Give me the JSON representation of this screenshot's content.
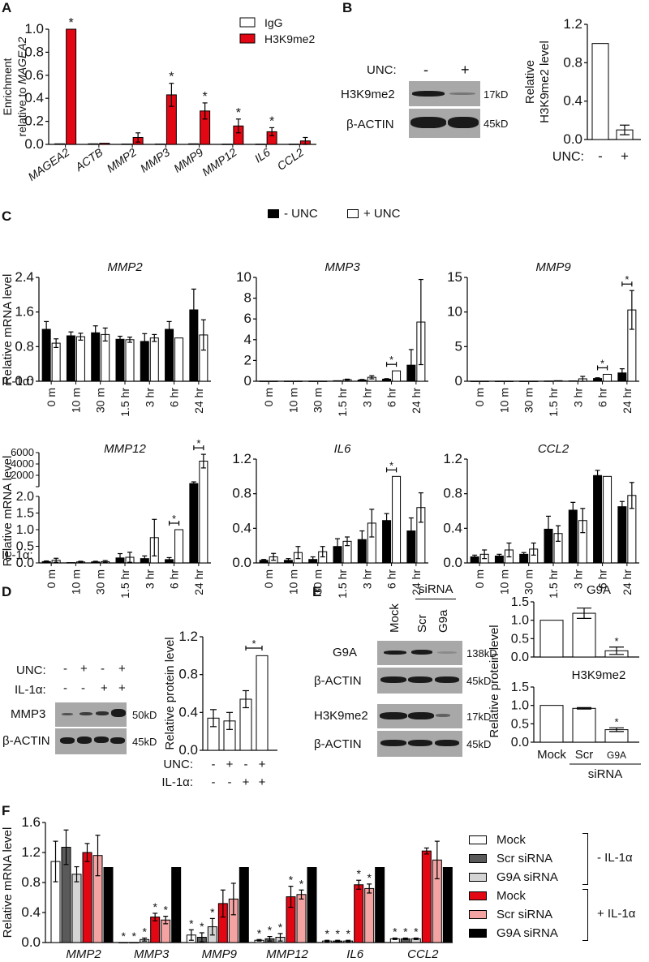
{
  "colors": {
    "red": "#e30613",
    "pink": "#f4a3a3",
    "dark_gray": "#5a5a5a",
    "light_gray": "#d4d4d4",
    "black": "#000000",
    "white": "#ffffff",
    "blot_bg": "#a8a8a8"
  },
  "panels": {
    "A": {
      "letter": "A"
    },
    "B": {
      "letter": "B",
      "blot": {
        "unc_label": "UNC:",
        "lanes": [
          "-",
          "+"
        ],
        "rows": [
          {
            "label": "H3K9me2",
            "kd": "17kD"
          },
          {
            "label": "β-ACTIN",
            "kd": "45kD"
          }
        ]
      }
    },
    "C": {
      "letter": "C",
      "legend": [
        "- UNC",
        "+ UNC"
      ],
      "il1a_label": "IL-1α:"
    },
    "D": {
      "letter": "D",
      "blot": {
        "rows_header": [
          {
            "label": "UNC:",
            "signs": [
              "-",
              "+",
              "-",
              "+"
            ]
          },
          {
            "label": "IL-1α:",
            "signs": [
              "-",
              "-",
              "+",
              "+"
            ]
          }
        ],
        "rows": [
          {
            "label": "MMP3",
            "kd": "50kD"
          },
          {
            "label": "β-ACTIN",
            "kd": "45kD"
          }
        ]
      }
    },
    "E": {
      "letter": "E",
      "blot": {
        "sirna_label": "siRNA",
        "lanes": [
          "Mock",
          "Scr",
          "G9a"
        ],
        "rows": [
          {
            "label": "G9A",
            "kd": "138kD"
          },
          {
            "label": "β-ACTIN",
            "kd": "45kD"
          },
          {
            "label": "H3K9me2",
            "kd": "17kD"
          },
          {
            "label": "β-ACTIN",
            "kd": "45kD"
          }
        ]
      }
    },
    "F": {
      "letter": "F",
      "legend": {
        "items": [
          "Mock",
          "Scr siRNA",
          "G9A siRNA",
          "Mock",
          "Scr siRNA",
          "G9A siRNA"
        ],
        "groups": [
          "- IL-1α",
          "+ IL-1α"
        ]
      }
    }
  },
  "chart_data": [
    {
      "id": "A",
      "type": "bar",
      "title": "",
      "ylabel": "Enrichment relative to MAGEA2",
      "xlabel": "",
      "ylim": [
        0,
        1.0
      ],
      "yticks": [
        "0.0",
        "0.2",
        "0.4",
        "0.6",
        "0.8",
        "1.0"
      ],
      "categories": [
        "MAGEA2",
        "ACTB",
        "MMP2",
        "MMP3",
        "MMP9",
        "MMP12",
        "IL6",
        "CCL2"
      ],
      "series": [
        {
          "name": "IgG",
          "color": "#ffffff",
          "values": [
            0.005,
            0.005,
            0.003,
            0.003,
            0.005,
            0.002,
            0.002,
            0.002
          ],
          "errors": [
            0.002,
            0.002,
            0.001,
            0.001,
            0.002,
            0.001,
            0.001,
            0.001
          ]
        },
        {
          "name": "H3K9me2",
          "color": "#e30613",
          "values": [
            1.0,
            0.01,
            0.06,
            0.43,
            0.29,
            0.16,
            0.11,
            0.03
          ],
          "errors": [
            0,
            0.003,
            0.04,
            0.1,
            0.07,
            0.06,
            0.035,
            0.03
          ]
        }
      ],
      "significant": [
        "MAGEA2",
        "MMP3",
        "MMP9",
        "MMP12",
        "IL6"
      ],
      "legend_position": "top-right"
    },
    {
      "id": "B",
      "type": "bar",
      "ylabel": "Relative H3K9me2 level",
      "ylim": [
        0,
        1.2
      ],
      "yticks": [
        "0.0",
        "0.4",
        "0.8",
        "1.2"
      ],
      "categories": [
        "-",
        "+"
      ],
      "xprefix": "UNC:",
      "values": [
        1.0,
        0.1
      ],
      "errors": [
        0,
        0.05
      ]
    },
    {
      "id": "C-MMP2",
      "type": "bar",
      "title": "MMP2",
      "ylabel": "Relative mRNA level",
      "ylim": [
        0,
        2.4
      ],
      "yticks": [
        "0.0",
        "0.8",
        "1.6",
        "2.4"
      ],
      "categories": [
        "0 m",
        "10 m",
        "30 m",
        "1.5 hr",
        "3 hr",
        "6 hr",
        "24 hr"
      ],
      "series": [
        {
          "name": "- UNC",
          "values": [
            1.2,
            1.05,
            1.12,
            0.97,
            0.92,
            1.2,
            1.65
          ],
          "errors": [
            0.18,
            0.09,
            0.16,
            0.07,
            0.18,
            0.18,
            0.48
          ]
        },
        {
          "name": "+ UNC",
          "values": [
            0.88,
            1.03,
            1.08,
            0.96,
            1.0,
            1.0,
            1.07
          ],
          "errors": [
            0.1,
            0.08,
            0.15,
            0.06,
            0.08,
            0,
            0.35
          ]
        }
      ],
      "significant_idx": []
    },
    {
      "id": "C-MMP3",
      "type": "bar",
      "title": "MMP3",
      "ylabel": "",
      "ylim": [
        0,
        10
      ],
      "yticks": [
        "0",
        "2",
        "4",
        "6",
        "8",
        "10"
      ],
      "categories": [
        "0 m",
        "10 m",
        "30 m",
        "1.5 hr",
        "3 hr",
        "6 hr",
        "24 hr"
      ],
      "series": [
        {
          "name": "- UNC",
          "values": [
            0.01,
            0.01,
            0.01,
            0.05,
            0.12,
            0.2,
            1.55
          ],
          "errors": [
            0,
            0,
            0,
            0.02,
            0.05,
            0.05,
            1.5
          ]
        },
        {
          "name": "+ UNC",
          "values": [
            0.01,
            0.01,
            0.01,
            0.15,
            0.38,
            1.0,
            5.7
          ],
          "errors": [
            0,
            0,
            0,
            0.05,
            0.15,
            0,
            4.1
          ]
        }
      ],
      "significant_idx": [
        5
      ]
    },
    {
      "id": "C-MMP9",
      "type": "bar",
      "title": "MMP9",
      "ylabel": "",
      "ylim": [
        0,
        15
      ],
      "yticks": [
        "0",
        "5",
        "10",
        "15"
      ],
      "categories": [
        "0 m",
        "10 m",
        "30 m",
        "1.5 hr",
        "3 hr",
        "6 hr",
        "24 hr"
      ],
      "series": [
        {
          "name": "- UNC",
          "values": [
            0.01,
            0.01,
            0.01,
            0.03,
            0.05,
            0.4,
            1.2
          ],
          "errors": [
            0,
            0,
            0,
            0.01,
            0.02,
            0.1,
            0.6
          ]
        },
        {
          "name": "+ UNC",
          "values": [
            0.01,
            0.01,
            0.01,
            0.08,
            0.35,
            1.0,
            10.3
          ],
          "errors": [
            0,
            0,
            0,
            0.02,
            0.35,
            0,
            2.8
          ]
        }
      ],
      "significant_idx": [
        5,
        6
      ]
    },
    {
      "id": "C-MMP12",
      "type": "bar",
      "title": "MMP12",
      "ylabel": "Relative mRNA level",
      "ylim": [
        0,
        6000
      ],
      "axis_break": {
        "lower": [
          0,
          2.0
        ],
        "upper": [
          0,
          6000
        ]
      },
      "yticks_lower": [
        "0.0",
        "0.5",
        "1.0",
        "1.5",
        "2.0"
      ],
      "yticks_upper": [
        "2000",
        "4000",
        "6000"
      ],
      "categories": [
        "0 m",
        "10 m",
        "30 m",
        "1.5 hr",
        "3 hr",
        "6 hr",
        "24 hr"
      ],
      "series": [
        {
          "name": "- UNC",
          "values": [
            0.04,
            0.01,
            0.03,
            0.15,
            0.13,
            0.1,
            550
          ],
          "errors": [
            0.02,
            0.01,
            0.02,
            0.13,
            0.08,
            0.06,
            300
          ]
        },
        {
          "name": "+ UNC",
          "values": [
            0.08,
            0.03,
            0.04,
            0.17,
            0.76,
            1.0,
            4500
          ],
          "errors": [
            0.06,
            0.02,
            0.03,
            0.15,
            0.55,
            0,
            1200
          ]
        }
      ],
      "significant_idx": [
        5,
        6
      ]
    },
    {
      "id": "C-IL6",
      "type": "bar",
      "title": "IL6",
      "ylabel": "",
      "ylim": [
        0,
        1.2
      ],
      "yticks": [
        "0.0",
        "0.4",
        "0.8",
        "1.2"
      ],
      "categories": [
        "0 m",
        "10 m",
        "30 m",
        "1.5 hr",
        "3 hr",
        "6 hr",
        "24 hr"
      ],
      "series": [
        {
          "name": "- UNC",
          "values": [
            0.03,
            0.03,
            0.04,
            0.19,
            0.27,
            0.49,
            0.37
          ],
          "errors": [
            0.01,
            0.02,
            0.03,
            0.09,
            0.1,
            0.08,
            0.15
          ]
        },
        {
          "name": "+ UNC",
          "values": [
            0.07,
            0.12,
            0.13,
            0.25,
            0.46,
            1.0,
            0.64
          ],
          "errors": [
            0.04,
            0.07,
            0.06,
            0.05,
            0.16,
            0,
            0.17
          ]
        }
      ],
      "significant_idx": [
        5
      ]
    },
    {
      "id": "C-CCL2",
      "type": "bar",
      "title": "CCL2",
      "ylabel": "",
      "ylim": [
        0,
        1.2
      ],
      "yticks": [
        "0.0",
        "0.4",
        "0.8",
        "1.2"
      ],
      "categories": [
        "0 m",
        "10 m",
        "30 m",
        "1.5 hr",
        "3 hr",
        "6 hr",
        "24 hr"
      ],
      "series": [
        {
          "name": "- UNC",
          "values": [
            0.07,
            0.08,
            0.1,
            0.39,
            0.61,
            1.01,
            0.65
          ],
          "errors": [
            0.02,
            0.02,
            0.02,
            0.15,
            0.09,
            0.06,
            0.06
          ]
        },
        {
          "name": "+ UNC",
          "values": [
            0.1,
            0.15,
            0.16,
            0.34,
            0.49,
            1.0,
            0.78
          ],
          "errors": [
            0.05,
            0.08,
            0.07,
            0.09,
            0.14,
            0,
            0.15
          ]
        }
      ],
      "significant_idx": []
    },
    {
      "id": "D",
      "type": "bar",
      "ylabel": "Relative protein level",
      "ylim": [
        0,
        1.2
      ],
      "yticks": [
        "0.0",
        "0.4",
        "0.8",
        "1.2"
      ],
      "categories": [
        "UNC- IL1a-",
        "UNC+ IL1a-",
        "UNC- IL1a+",
        "UNC+ IL1a+"
      ],
      "xrows": [
        {
          "label": "UNC:",
          "signs": [
            "-",
            "+",
            "-",
            "+"
          ]
        },
        {
          "label": "IL-1α:",
          "signs": [
            "-",
            "-",
            "+",
            "+"
          ]
        }
      ],
      "values": [
        0.34,
        0.31,
        0.54,
        1.0
      ],
      "errors": [
        0.09,
        0.09,
        0.09,
        0
      ],
      "significant_pair": [
        2,
        3
      ]
    },
    {
      "id": "E-G9A",
      "type": "bar",
      "title": "G9A",
      "ylabel": "Relative protein level",
      "ylim": [
        0,
        1.5
      ],
      "yticks": [
        "0.0",
        "0.5",
        "1.0",
        "1.5"
      ],
      "categories": [
        "Mock",
        "Scr",
        "G9A"
      ],
      "values": [
        1.0,
        1.19,
        0.17
      ],
      "errors": [
        0,
        0.14,
        0.1
      ],
      "significant_idx": [
        2
      ]
    },
    {
      "id": "E-H3K9me2",
      "type": "bar",
      "title": "H3K9me2",
      "ylabel": "",
      "ylim": [
        0,
        1.5
      ],
      "yticks": [
        "0.0",
        "0.5",
        "1.0",
        "1.5"
      ],
      "categories": [
        "Mock",
        "Scr",
        "G9A"
      ],
      "xgroup_label": "siRNA",
      "values": [
        1.0,
        0.92,
        0.34
      ],
      "errors": [
        0,
        0.02,
        0.05
      ],
      "significant_idx": [
        2
      ]
    },
    {
      "id": "F",
      "type": "bar",
      "ylabel": "Relative mRNA level",
      "ylim": [
        0,
        1.6
      ],
      "yticks": [
        "0.0",
        "0.4",
        "0.8",
        "1.2",
        "1.6"
      ],
      "categories": [
        "MMP2",
        "MMP3",
        "MMP9",
        "MMP12",
        "IL6",
        "CCL2"
      ],
      "series": [
        {
          "name": "Mock (- IL-1α)",
          "color": "#ffffff",
          "values": [
            1.08,
            0.0,
            0.1,
            0.03,
            0.02,
            0.05
          ],
          "errors": [
            0.27,
            0,
            0.07,
            0.01,
            0.01,
            0.01
          ]
        },
        {
          "name": "Scr siRNA (- IL-1α)",
          "color": "#5a5a5a",
          "values": [
            1.27,
            0.0,
            0.07,
            0.05,
            0.02,
            0.05
          ],
          "errors": [
            0.23,
            0,
            0.06,
            0.03,
            0.01,
            0.01
          ]
        },
        {
          "name": "G9A siRNA (- IL-1α)",
          "color": "#d4d4d4",
          "values": [
            0.91,
            0.04,
            0.21,
            0.07,
            0.02,
            0.05
          ],
          "errors": [
            0.1,
            0.02,
            0.11,
            0.05,
            0.01,
            0.01
          ]
        },
        {
          "name": "Mock (+ IL-1α)",
          "color": "#e30613",
          "values": [
            1.2,
            0.34,
            0.52,
            0.61,
            0.77,
            1.22
          ],
          "errors": [
            0.12,
            0.05,
            0.18,
            0.14,
            0.06,
            0.04
          ]
        },
        {
          "name": "Scr siRNA (+ IL-1α)",
          "color": "#f4a3a3",
          "values": [
            1.16,
            0.3,
            0.58,
            0.64,
            0.72,
            1.1
          ],
          "errors": [
            0.27,
            0.05,
            0.21,
            0.06,
            0.06,
            0.25
          ]
        },
        {
          "name": "G9A siRNA (+ IL-1α)",
          "color": "#000000",
          "values": [
            1.0,
            1.0,
            1.0,
            1.0,
            1.0,
            1.0
          ],
          "errors": [
            0,
            0,
            0,
            0,
            0,
            0
          ]
        }
      ],
      "significant": {
        "MMP3": [
          0,
          1,
          2,
          3,
          4
        ],
        "MMP9": [
          0,
          1,
          2
        ],
        "MMP12": [
          0,
          1,
          2,
          3,
          4
        ],
        "IL6": [
          0,
          1,
          2,
          3,
          4
        ],
        "CCL2": [
          0,
          1,
          2
        ]
      },
      "legend_position": "right"
    }
  ]
}
